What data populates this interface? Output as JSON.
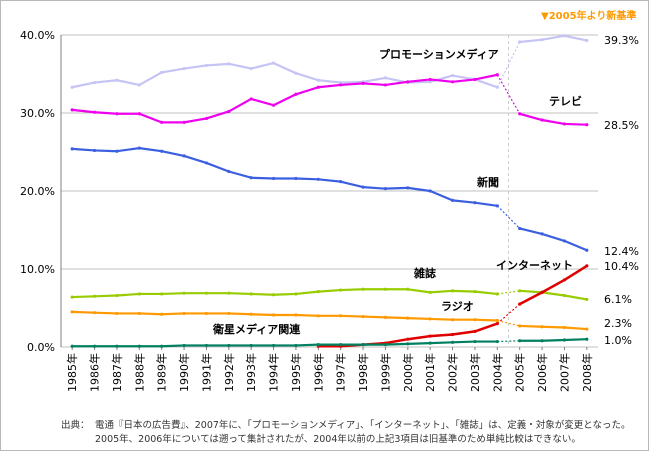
{
  "note": "▼2005年より新基準",
  "footnote": {
    "prefix": "出典：",
    "line1": "電通『日本の広告費』、2007年に、「プロモーションメディア」、「インターネット」、「雑誌」は、定義・対象が変更となった。",
    "line2": "2005年、2006年については遡って集計されたが、2004年以前の上記3項目は旧基準のため単純比較はできない。"
  },
  "chart_data": {
    "type": "line",
    "categories": [
      "1985年",
      "1986年",
      "1987年",
      "1988年",
      "1989年",
      "1990年",
      "1991年",
      "1992年",
      "1993年",
      "1994年",
      "1995年",
      "1996年",
      "1997年",
      "1998年",
      "1999年",
      "2000年",
      "2001年",
      "2002年",
      "2003年",
      "2004年",
      "2005年",
      "2006年",
      "2007年",
      "2008年"
    ],
    "ylim": [
      0,
      40
    ],
    "yticks": [
      "0.0%",
      "10.0%",
      "20.0%",
      "30.0%",
      "40.0%"
    ],
    "grid": true,
    "break_between": [
      "2004年",
      "2005年"
    ],
    "series": [
      {
        "name": "プロモーションメディア",
        "color": "#c6c3f5",
        "values": [
          33.3,
          33.9,
          34.2,
          33.6,
          35.2,
          35.7,
          36.1,
          36.3,
          35.7,
          36.4,
          35.1,
          34.2,
          33.9,
          34.0,
          34.5,
          33.9,
          34.0,
          34.8,
          34.3,
          33.3,
          39.1,
          39.4,
          39.9,
          39.3
        ],
        "end_label": "39.3%"
      },
      {
        "name": "テレビ",
        "color": "#ee00ee",
        "values": [
          30.4,
          30.1,
          29.9,
          29.9,
          28.8,
          28.8,
          29.3,
          30.2,
          31.8,
          31.0,
          32.4,
          33.3,
          33.6,
          33.8,
          33.6,
          34.0,
          34.3,
          34.0,
          34.3,
          34.9,
          29.9,
          29.1,
          28.6,
          28.5
        ],
        "end_label": "28.5%"
      },
      {
        "name": "新聞",
        "color": "#3b5fe0",
        "values": [
          25.4,
          25.2,
          25.1,
          25.5,
          25.1,
          24.5,
          23.6,
          22.5,
          21.7,
          21.6,
          21.6,
          21.5,
          21.2,
          20.5,
          20.3,
          20.4,
          20.0,
          18.8,
          18.5,
          18.1,
          15.2,
          14.5,
          13.6,
          12.4
        ],
        "end_label": "12.4%"
      },
      {
        "name": "雑誌",
        "color": "#99cc00",
        "values": [
          6.4,
          6.5,
          6.6,
          6.8,
          6.8,
          6.9,
          6.9,
          6.9,
          6.8,
          6.7,
          6.8,
          7.1,
          7.3,
          7.4,
          7.4,
          7.4,
          7.0,
          7.2,
          7.1,
          6.8,
          7.2,
          7.0,
          6.6,
          6.1
        ],
        "end_label": "6.1%"
      },
      {
        "name": "インターネット",
        "color": "#e00000",
        "values": [
          null,
          null,
          null,
          null,
          null,
          null,
          null,
          null,
          null,
          null,
          null,
          0.1,
          0.1,
          0.3,
          0.5,
          1.0,
          1.4,
          1.6,
          2.0,
          3.0,
          5.5,
          7.0,
          8.6,
          10.4
        ],
        "end_label": "10.4%"
      },
      {
        "name": "ラジオ",
        "color": "#ff9900",
        "values": [
          4.5,
          4.4,
          4.3,
          4.3,
          4.2,
          4.3,
          4.3,
          4.3,
          4.2,
          4.1,
          4.1,
          4.0,
          4.0,
          3.9,
          3.8,
          3.7,
          3.6,
          3.5,
          3.5,
          3.4,
          2.7,
          2.6,
          2.5,
          2.3
        ],
        "end_label": "2.3%"
      },
      {
        "name": "衛星メディア関連",
        "color": "#008060",
        "values": [
          0.1,
          0.1,
          0.1,
          0.1,
          0.1,
          0.2,
          0.2,
          0.2,
          0.2,
          0.2,
          0.2,
          0.3,
          0.3,
          0.3,
          0.3,
          0.4,
          0.5,
          0.6,
          0.7,
          0.7,
          0.8,
          0.8,
          0.9,
          1.0
        ],
        "end_label": "1.0%"
      }
    ]
  }
}
